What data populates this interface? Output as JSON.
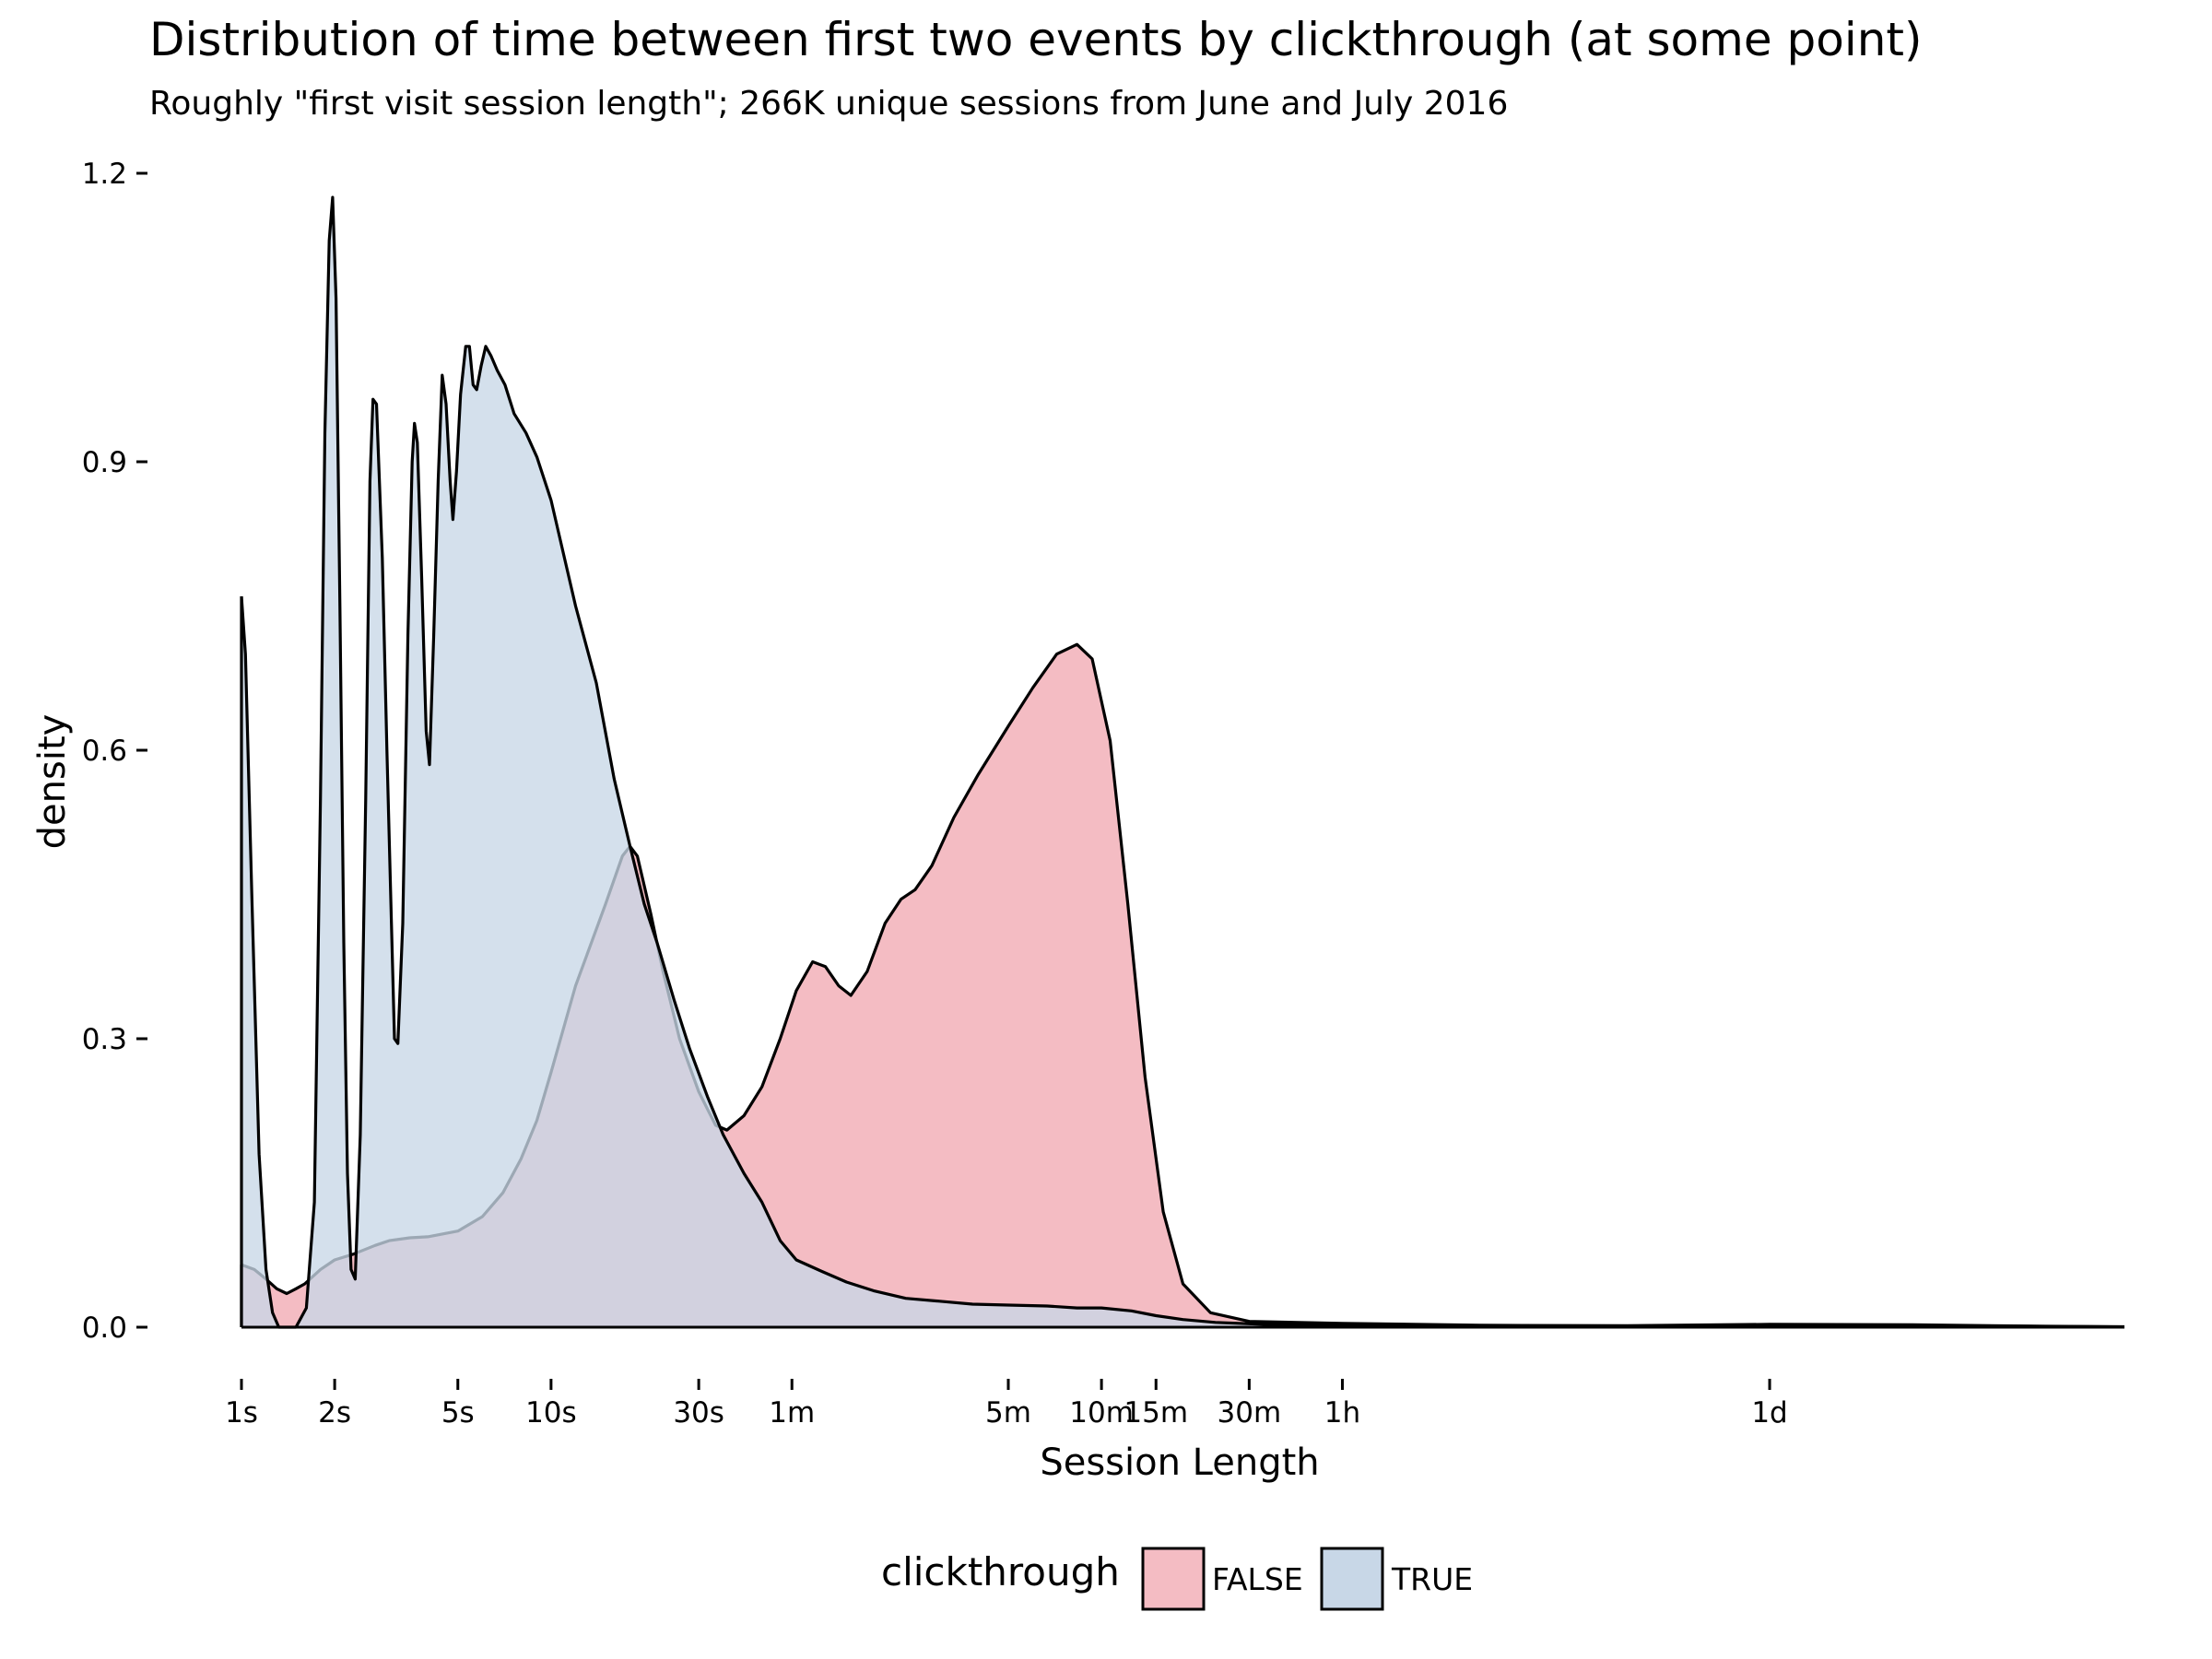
{
  "chart_data": {
    "type": "area",
    "title": "Distribution of time between first two events by clickthrough (at some point)",
    "subtitle": "Roughly \"first visit session length\"; 266K unique sessions from June and July 2016",
    "xlabel": "Session Length",
    "ylabel": "density",
    "x_scale": "log",
    "xlim_seconds": [
      1,
      1209600
    ],
    "ylim": [
      0,
      1.2
    ],
    "grid": false,
    "legend": {
      "title": "clickthrough",
      "position": "bottom"
    },
    "y_ticks": [
      {
        "value": 0.0,
        "label": "0.0"
      },
      {
        "value": 0.3,
        "label": "0.3"
      },
      {
        "value": 0.6,
        "label": "0.6"
      },
      {
        "value": 0.9,
        "label": "0.9"
      },
      {
        "value": 1.2,
        "label": "1.2"
      }
    ],
    "x_ticks": [
      {
        "value": 1,
        "label": "1s"
      },
      {
        "value": 2,
        "label": "2s"
      },
      {
        "value": 5,
        "label": "5s"
      },
      {
        "value": 10,
        "label": "10s"
      },
      {
        "value": 30,
        "label": "30s"
      },
      {
        "value": 60,
        "label": "1m"
      },
      {
        "value": 300,
        "label": "5m"
      },
      {
        "value": 600,
        "label": "10m"
      },
      {
        "value": 900,
        "label": "15m"
      },
      {
        "value": 1800,
        "label": "30m"
      },
      {
        "value": 3600,
        "label": "1h"
      },
      {
        "value": 86400,
        "label": "1d"
      }
    ],
    "series": [
      {
        "name": "FALSE",
        "color": "#f4bcc3",
        "points": [
          [
            1,
            0.065
          ],
          [
            1.1,
            0.06
          ],
          [
            1.2,
            0.05
          ],
          [
            1.3,
            0.04
          ],
          [
            1.4,
            0.035
          ],
          [
            1.5,
            0.04
          ],
          [
            1.6,
            0.045
          ],
          [
            1.8,
            0.06
          ],
          [
            2,
            0.07
          ],
          [
            2.3,
            0.076
          ],
          [
            2.7,
            0.085
          ],
          [
            3,
            0.09
          ],
          [
            3.5,
            0.093
          ],
          [
            4,
            0.094
          ],
          [
            5,
            0.1
          ],
          [
            6,
            0.115
          ],
          [
            7,
            0.14
          ],
          [
            8,
            0.175
          ],
          [
            9,
            0.215
          ],
          [
            10,
            0.265
          ],
          [
            12,
            0.355
          ],
          [
            15,
            0.44
          ],
          [
            17,
            0.49
          ],
          [
            18,
            0.5
          ],
          [
            19,
            0.49
          ],
          [
            21,
            0.43
          ],
          [
            23,
            0.37
          ],
          [
            26,
            0.3
          ],
          [
            30,
            0.245
          ],
          [
            34,
            0.21
          ],
          [
            37,
            0.205
          ],
          [
            42,
            0.22
          ],
          [
            48,
            0.25
          ],
          [
            55,
            0.3
          ],
          [
            62,
            0.35
          ],
          [
            70,
            0.38
          ],
          [
            77,
            0.375
          ],
          [
            85,
            0.355
          ],
          [
            93,
            0.345
          ],
          [
            105,
            0.37
          ],
          [
            120,
            0.42
          ],
          [
            135,
            0.445
          ],
          [
            150,
            0.455
          ],
          [
            170,
            0.48
          ],
          [
            200,
            0.53
          ],
          [
            240,
            0.575
          ],
          [
            300,
            0.625
          ],
          [
            360,
            0.665
          ],
          [
            430,
            0.7
          ],
          [
            500,
            0.71
          ],
          [
            560,
            0.695
          ],
          [
            640,
            0.61
          ],
          [
            730,
            0.44
          ],
          [
            830,
            0.26
          ],
          [
            950,
            0.12
          ],
          [
            1100,
            0.045
          ],
          [
            1350,
            0.015
          ],
          [
            1800,
            0.006
          ],
          [
            3600,
            0.004
          ],
          [
            10000,
            0.002
          ],
          [
            30000,
            0.0015
          ],
          [
            86400,
            0.003
          ],
          [
            250000,
            0.0025
          ],
          [
            700000,
            0.001
          ],
          [
            1209600,
            0.0005
          ]
        ]
      },
      {
        "name": "TRUE",
        "color": "#c8d7e7",
        "points": [
          [
            1,
            0.76
          ],
          [
            1.03,
            0.7
          ],
          [
            1.08,
            0.45
          ],
          [
            1.14,
            0.18
          ],
          [
            1.2,
            0.06
          ],
          [
            1.26,
            0.015
          ],
          [
            1.32,
            0.0
          ],
          [
            1.5,
            0.0
          ],
          [
            1.62,
            0.02
          ],
          [
            1.72,
            0.13
          ],
          [
            1.8,
            0.55
          ],
          [
            1.86,
            0.93
          ],
          [
            1.92,
            1.13
          ],
          [
            1.97,
            1.175
          ],
          [
            2.02,
            1.07
          ],
          [
            2.08,
            0.75
          ],
          [
            2.14,
            0.4
          ],
          [
            2.2,
            0.16
          ],
          [
            2.26,
            0.06
          ],
          [
            2.33,
            0.05
          ],
          [
            2.42,
            0.2
          ],
          [
            2.52,
            0.55
          ],
          [
            2.6,
            0.88
          ],
          [
            2.66,
            0.965
          ],
          [
            2.73,
            0.96
          ],
          [
            2.85,
            0.8
          ],
          [
            2.95,
            0.6
          ],
          [
            3.05,
            0.42
          ],
          [
            3.12,
            0.3
          ],
          [
            3.2,
            0.295
          ],
          [
            3.32,
            0.42
          ],
          [
            3.45,
            0.72
          ],
          [
            3.56,
            0.9
          ],
          [
            3.62,
            0.94
          ],
          [
            3.7,
            0.92
          ],
          [
            3.82,
            0.78
          ],
          [
            3.95,
            0.62
          ],
          [
            4.05,
            0.585
          ],
          [
            4.18,
            0.72
          ],
          [
            4.32,
            0.88
          ],
          [
            4.45,
            0.99
          ],
          [
            4.58,
            0.96
          ],
          [
            4.72,
            0.88
          ],
          [
            4.82,
            0.84
          ],
          [
            4.95,
            0.89
          ],
          [
            5.1,
            0.97
          ],
          [
            5.3,
            1.02
          ],
          [
            5.45,
            1.02
          ],
          [
            5.6,
            0.98
          ],
          [
            5.75,
            0.975
          ],
          [
            5.95,
            1.0
          ],
          [
            6.15,
            1.02
          ],
          [
            6.4,
            1.01
          ],
          [
            6.7,
            0.995
          ],
          [
            7.1,
            0.98
          ],
          [
            7.6,
            0.95
          ],
          [
            8.3,
            0.93
          ],
          [
            9,
            0.905
          ],
          [
            10,
            0.86
          ],
          [
            12,
            0.75
          ],
          [
            14,
            0.67
          ],
          [
            16,
            0.57
          ],
          [
            18,
            0.5
          ],
          [
            20,
            0.44
          ],
          [
            22,
            0.4
          ],
          [
            25,
            0.34
          ],
          [
            28,
            0.29
          ],
          [
            32,
            0.24
          ],
          [
            36,
            0.2
          ],
          [
            42,
            0.16
          ],
          [
            48,
            0.13
          ],
          [
            55,
            0.09
          ],
          [
            62,
            0.07
          ],
          [
            75,
            0.058
          ],
          [
            90,
            0.047
          ],
          [
            110,
            0.038
          ],
          [
            140,
            0.03
          ],
          [
            180,
            0.027
          ],
          [
            230,
            0.024
          ],
          [
            300,
            0.023
          ],
          [
            400,
            0.022
          ],
          [
            500,
            0.02
          ],
          [
            600,
            0.02
          ],
          [
            750,
            0.017
          ],
          [
            900,
            0.012
          ],
          [
            1100,
            0.008
          ],
          [
            1400,
            0.005
          ],
          [
            2000,
            0.003
          ],
          [
            5000,
            0.002
          ],
          [
            20000,
            0.001
          ],
          [
            86400,
            0.002
          ],
          [
            300000,
            0.0015
          ],
          [
            1209600,
            0.0003
          ]
        ]
      }
    ]
  }
}
